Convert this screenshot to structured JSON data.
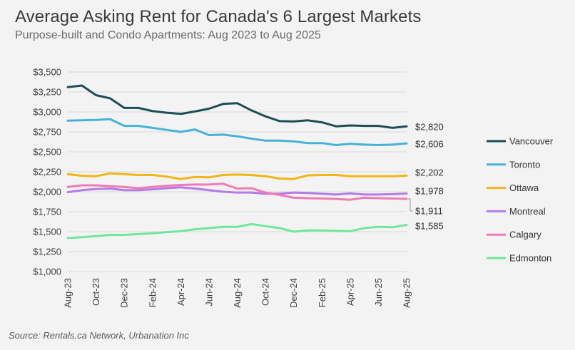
{
  "chart_data": {
    "type": "line",
    "title": "Average Asking Rent for Canada's 6 Largest Markets",
    "subtitle": "Purpose-built and Condo Apartments: Aug 2023 to Aug 2025",
    "source": "Source: Rentals.ca Network, Urbanation Inc",
    "xlabel": "",
    "ylabel": "",
    "ylim": [
      1000,
      3500
    ],
    "yticks": [
      1000,
      1250,
      1500,
      1750,
      2000,
      2250,
      2500,
      2750,
      3000,
      3250,
      3500
    ],
    "ytick_labels": [
      "$1,000",
      "$1,250",
      "$1,500",
      "$1,750",
      "$2,000",
      "$2,250",
      "$2,500",
      "$2,750",
      "$3,000",
      "$3,250",
      "$3,500"
    ],
    "x": [
      "Aug-23",
      "Sep-23",
      "Oct-23",
      "Nov-23",
      "Dec-23",
      "Jan-24",
      "Feb-24",
      "Mar-24",
      "Apr-24",
      "May-24",
      "Jun-24",
      "Jul-24",
      "Aug-24",
      "Sep-24",
      "Oct-24",
      "Nov-24",
      "Dec-24",
      "Jan-25",
      "Feb-25",
      "Mar-25",
      "Apr-25",
      "May-25",
      "Jun-25",
      "Jul-25",
      "Aug-25"
    ],
    "xtick_labels": [
      "Aug-23",
      "Oct-23",
      "Dec-23",
      "Feb-24",
      "Apr-24",
      "Jun-24",
      "Aug-24",
      "Oct-24",
      "Dec-24",
      "Feb-25",
      "Apr-25",
      "Jun-25",
      "Aug-25"
    ],
    "grid": true,
    "legend_position": "right",
    "series": [
      {
        "name": "Vancouver",
        "color": "#1d4d57",
        "values": [
          3310,
          3330,
          3210,
          3170,
          3050,
          3050,
          3010,
          2990,
          2975,
          3005,
          3040,
          3100,
          3110,
          3020,
          2945,
          2885,
          2880,
          2895,
          2870,
          2820,
          2830,
          2825,
          2825,
          2800,
          2820
        ],
        "end_label": "$2,820"
      },
      {
        "name": "Toronto",
        "color": "#45b3d8",
        "values": [
          2890,
          2895,
          2900,
          2910,
          2825,
          2825,
          2800,
          2775,
          2750,
          2780,
          2710,
          2715,
          2695,
          2665,
          2640,
          2640,
          2630,
          2610,
          2610,
          2585,
          2600,
          2590,
          2585,
          2590,
          2606
        ],
        "end_label": "$2,606"
      },
      {
        "name": "Ottawa",
        "color": "#f2b514",
        "values": [
          2220,
          2200,
          2195,
          2230,
          2220,
          2210,
          2210,
          2190,
          2160,
          2185,
          2180,
          2210,
          2215,
          2210,
          2195,
          2165,
          2160,
          2205,
          2210,
          2210,
          2195,
          2195,
          2195,
          2195,
          2202
        ],
        "end_label": "$2,202"
      },
      {
        "name": "Montreal",
        "color": "#b37be8",
        "values": [
          1995,
          2020,
          2035,
          2040,
          2020,
          2020,
          2030,
          2045,
          2055,
          2040,
          2020,
          2000,
          1990,
          1990,
          1975,
          1975,
          1990,
          1985,
          1975,
          1965,
          1980,
          1965,
          1965,
          1970,
          1978
        ],
        "end_label": "$1,978"
      },
      {
        "name": "Calgary",
        "color": "#ef7bb4",
        "values": [
          2060,
          2080,
          2080,
          2070,
          2060,
          2045,
          2060,
          2075,
          2085,
          2090,
          2090,
          2100,
          2040,
          2045,
          1990,
          1960,
          1925,
          1920,
          1915,
          1910,
          1900,
          1925,
          1920,
          1915,
          1911
        ],
        "end_label": "$1,911"
      },
      {
        "name": "Edmonton",
        "color": "#6ee89a",
        "values": [
          1420,
          1430,
          1445,
          1460,
          1460,
          1470,
          1480,
          1495,
          1505,
          1530,
          1545,
          1560,
          1560,
          1595,
          1570,
          1545,
          1500,
          1515,
          1515,
          1510,
          1505,
          1545,
          1560,
          1555,
          1585
        ],
        "end_label": "$1,585"
      }
    ]
  }
}
